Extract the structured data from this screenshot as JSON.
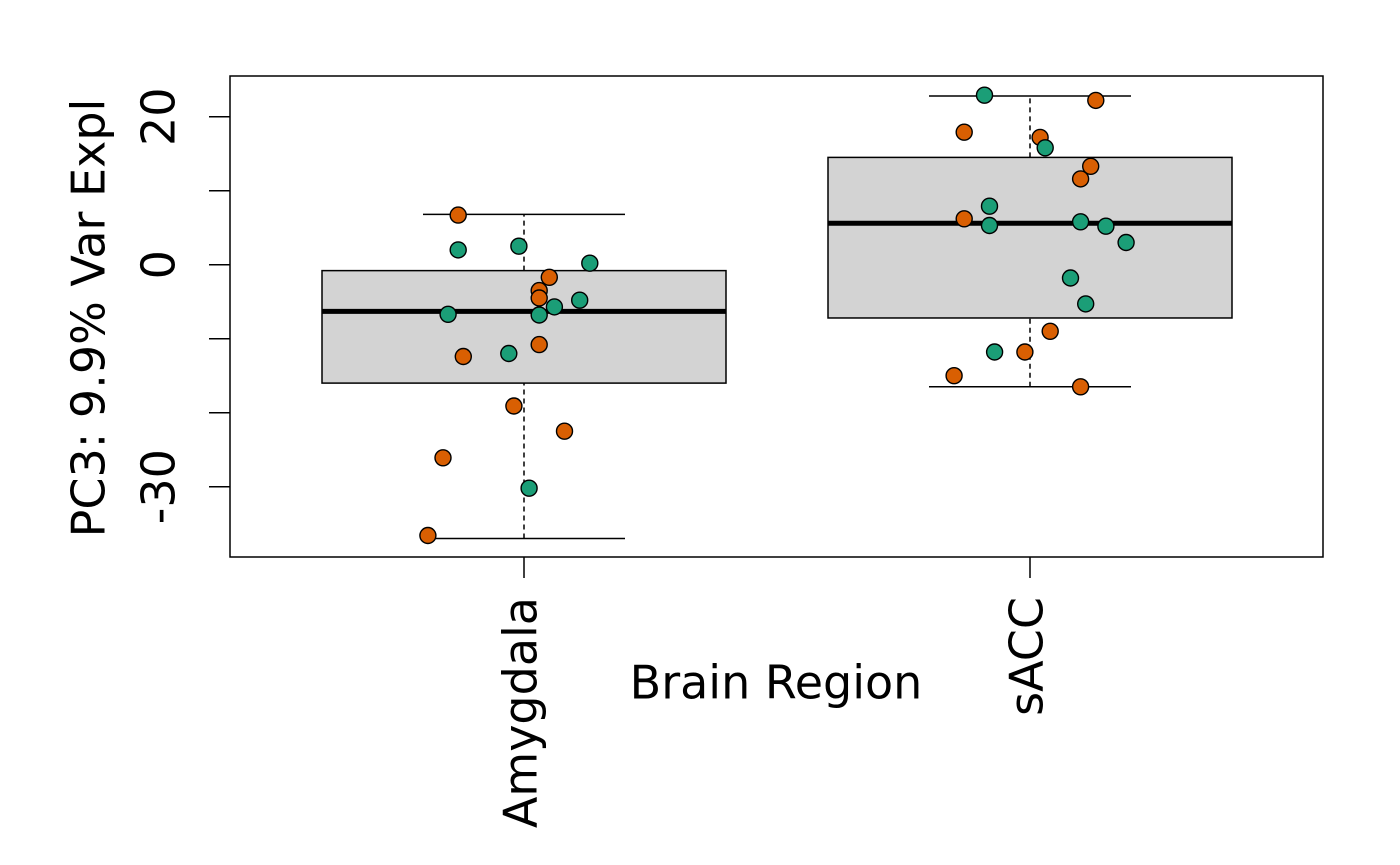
{
  "chart_data": {
    "type": "box",
    "xlabel": "Brain Region",
    "ylabel": "PC3: 9.9% Var Expl",
    "ylim": [
      -39.5,
      25.5
    ],
    "yticks": [
      -30,
      -20,
      -10,
      0,
      10,
      20
    ],
    "ytick_labels": [
      "-30",
      "",
      "",
      "0",
      "",
      "20"
    ],
    "categories": [
      "Amygdala",
      "sACC"
    ],
    "box_fill": "#d3d3d3",
    "boxes": [
      {
        "category": "Amygdala",
        "whisker_low": -37,
        "q1": -16,
        "median": -6.3,
        "q3": -0.8,
        "whisker_high": 6.8
      },
      {
        "category": "sACC",
        "whisker_low": -16.5,
        "q1": -7.2,
        "median": 5.6,
        "q3": 14.5,
        "whisker_high": 22.8
      }
    ],
    "point_colors": {
      "teal": "#1b9e77",
      "orange": "#d95f02"
    },
    "points": [
      {
        "category": "Amygdala",
        "jitter": -0.13,
        "y": 6.7,
        "color": "orange"
      },
      {
        "category": "Amygdala",
        "jitter": -0.13,
        "y": 2.0,
        "color": "teal"
      },
      {
        "category": "Amygdala",
        "jitter": -0.01,
        "y": 2.5,
        "color": "teal"
      },
      {
        "category": "Amygdala",
        "jitter": 0.13,
        "y": 0.2,
        "color": "teal"
      },
      {
        "category": "Amygdala",
        "jitter": 0.05,
        "y": -1.7,
        "color": "orange"
      },
      {
        "category": "Amygdala",
        "jitter": 0.03,
        "y": -3.5,
        "color": "orange"
      },
      {
        "category": "Amygdala",
        "jitter": 0.03,
        "y": -4.5,
        "color": "orange"
      },
      {
        "category": "Amygdala",
        "jitter": 0.11,
        "y": -4.8,
        "color": "teal"
      },
      {
        "category": "Amygdala",
        "jitter": 0.06,
        "y": -5.7,
        "color": "teal"
      },
      {
        "category": "Amygdala",
        "jitter": -0.15,
        "y": -6.7,
        "color": "teal"
      },
      {
        "category": "Amygdala",
        "jitter": 0.03,
        "y": -6.8,
        "color": "teal"
      },
      {
        "category": "Amygdala",
        "jitter": 0.03,
        "y": -10.8,
        "color": "orange"
      },
      {
        "category": "Amygdala",
        "jitter": -0.12,
        "y": -12.4,
        "color": "orange"
      },
      {
        "category": "Amygdala",
        "jitter": -0.03,
        "y": -12.0,
        "color": "teal"
      },
      {
        "category": "Amygdala",
        "jitter": -0.02,
        "y": -19.1,
        "color": "orange"
      },
      {
        "category": "Amygdala",
        "jitter": 0.08,
        "y": -22.5,
        "color": "orange"
      },
      {
        "category": "Amygdala",
        "jitter": -0.16,
        "y": -26.1,
        "color": "orange"
      },
      {
        "category": "Amygdala",
        "jitter": 0.01,
        "y": -30.2,
        "color": "teal"
      },
      {
        "category": "Amygdala",
        "jitter": -0.19,
        "y": -36.6,
        "color": "orange"
      },
      {
        "category": "sACC",
        "jitter": -0.09,
        "y": 22.9,
        "color": "teal"
      },
      {
        "category": "sACC",
        "jitter": 0.13,
        "y": 22.2,
        "color": "orange"
      },
      {
        "category": "sACC",
        "jitter": -0.13,
        "y": 17.9,
        "color": "orange"
      },
      {
        "category": "sACC",
        "jitter": 0.02,
        "y": 17.2,
        "color": "orange"
      },
      {
        "category": "sACC",
        "jitter": 0.03,
        "y": 15.8,
        "color": "teal"
      },
      {
        "category": "sACC",
        "jitter": 0.12,
        "y": 13.3,
        "color": "orange"
      },
      {
        "category": "sACC",
        "jitter": 0.1,
        "y": 11.6,
        "color": "orange"
      },
      {
        "category": "sACC",
        "jitter": -0.08,
        "y": 7.9,
        "color": "teal"
      },
      {
        "category": "sACC",
        "jitter": -0.13,
        "y": 6.2,
        "color": "orange"
      },
      {
        "category": "sACC",
        "jitter": 0.1,
        "y": 5.8,
        "color": "teal"
      },
      {
        "category": "sACC",
        "jitter": -0.08,
        "y": 5.3,
        "color": "teal"
      },
      {
        "category": "sACC",
        "jitter": 0.15,
        "y": 5.2,
        "color": "teal"
      },
      {
        "category": "sACC",
        "jitter": 0.19,
        "y": 3.0,
        "color": "teal"
      },
      {
        "category": "sACC",
        "jitter": 0.08,
        "y": -1.8,
        "color": "teal"
      },
      {
        "category": "sACC",
        "jitter": 0.11,
        "y": -5.3,
        "color": "teal"
      },
      {
        "category": "sACC",
        "jitter": 0.04,
        "y": -9.0,
        "color": "orange"
      },
      {
        "category": "sACC",
        "jitter": -0.07,
        "y": -11.8,
        "color": "teal"
      },
      {
        "category": "sACC",
        "jitter": -0.01,
        "y": -11.8,
        "color": "orange"
      },
      {
        "category": "sACC",
        "jitter": -0.15,
        "y": -15.0,
        "color": "orange"
      },
      {
        "category": "sACC",
        "jitter": 0.1,
        "y": -16.5,
        "color": "orange"
      }
    ]
  }
}
